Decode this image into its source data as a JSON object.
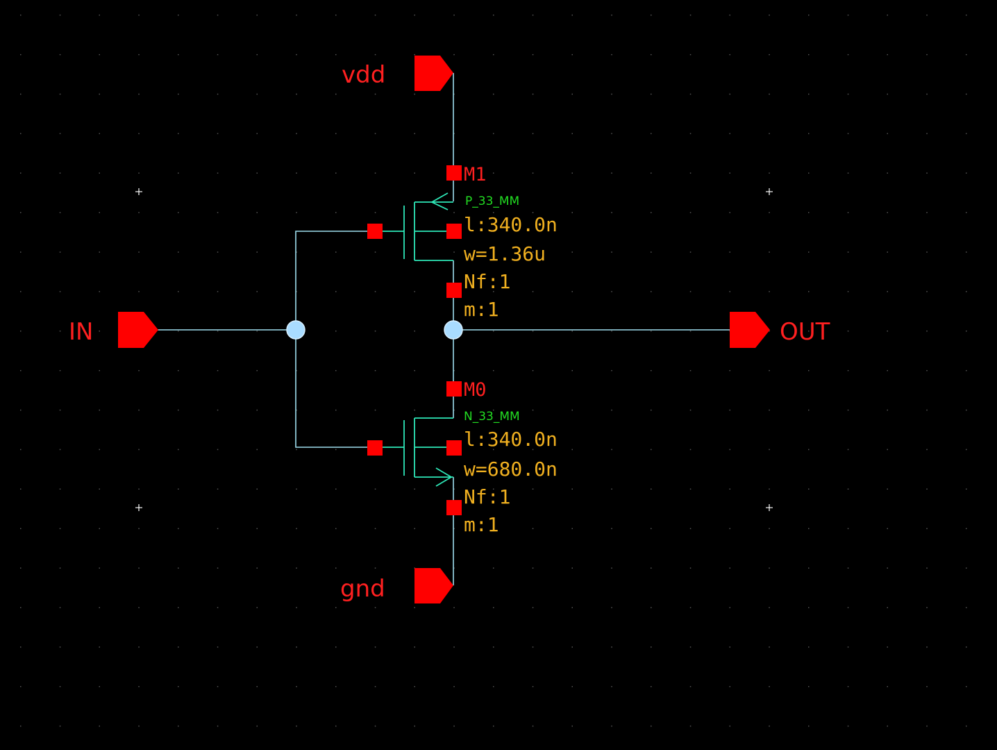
{
  "schematic": {
    "pins": {
      "vdd": "vdd",
      "gnd": "gnd",
      "in": "IN",
      "out": "OUT"
    },
    "pmos": {
      "instance": "M1",
      "model": "P_33_MM",
      "params": [
        "l:340.0n",
        "w=1.36u",
        "Nf:1",
        "m:1"
      ]
    },
    "nmos": {
      "instance": "M0",
      "model": "N_33_MM",
      "params": [
        "l:340.0n",
        "w=680.0n",
        "Nf:1",
        "m:1"
      ]
    }
  },
  "colors": {
    "background": "#000000",
    "wire": "#9fe0f0",
    "device": "#2ee8b8",
    "pin": "#ff0000",
    "model_label": "#22dd22",
    "param_label": "#f0b020",
    "net_dot": "#a9dcff"
  }
}
